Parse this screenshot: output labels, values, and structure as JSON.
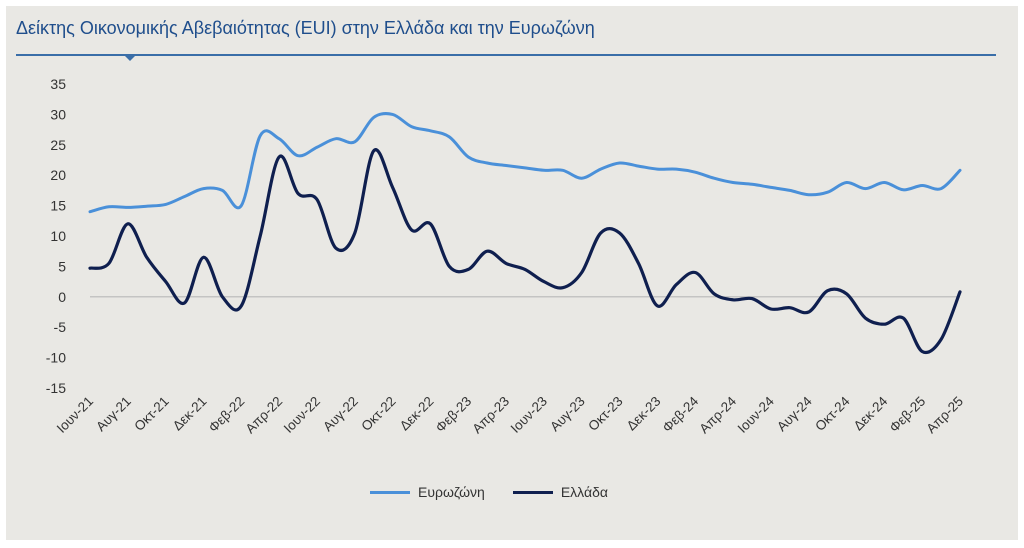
{
  "chart_data": {
    "type": "line",
    "title": "Δείκτης Οικονομικής Αβεβαιότητας (EUI) στην Ελλάδα και την Ευρωζώνη",
    "xlabel": "",
    "ylabel": "",
    "ylim": [
      -15,
      35
    ],
    "yticks": [
      35,
      30,
      25,
      20,
      15,
      10,
      5,
      0,
      -5,
      -10,
      -15
    ],
    "ytick_labels": [
      "35",
      "30",
      "25",
      "20",
      "15",
      "10",
      "5",
      "0",
      "-5",
      "-10",
      "-15"
    ],
    "xtick_labels": [
      "Ιουν-21",
      "Αυγ-21",
      "Οκτ-21",
      "Δεκ-21",
      "Φεβ-22",
      "Απρ-22",
      "Ιουν-22",
      "Αυγ-22",
      "Οκτ-22",
      "Δεκ-22",
      "Φεβ-23",
      "Απρ-23",
      "Ιουν-23",
      "Αυγ-23",
      "Οκτ-23",
      "Δεκ-23",
      "Φεβ-24",
      "Απρ-24",
      "Ιουν-24",
      "Αυγ-24",
      "Οκτ-24",
      "Δεκ-24",
      "Φεβ-25",
      "Απρ-25"
    ],
    "categories": [
      "Ιουν-21",
      "Ιουλ-21",
      "Αυγ-21",
      "Σεπ-21",
      "Οκτ-21",
      "Νοε-21",
      "Δεκ-21",
      "Ιαν-22",
      "Φεβ-22",
      "Μαρ-22",
      "Απρ-22",
      "Μαΐ-22",
      "Ιουν-22",
      "Ιουλ-22",
      "Αυγ-22",
      "Σεπ-22",
      "Οκτ-22",
      "Νοε-22",
      "Δεκ-22",
      "Ιαν-23",
      "Φεβ-23",
      "Μαρ-23",
      "Απρ-23",
      "Μαΐ-23",
      "Ιουν-23",
      "Ιουλ-23",
      "Αυγ-23",
      "Σεπ-23",
      "Οκτ-23",
      "Νοε-23",
      "Δεκ-23",
      "Ιαν-24",
      "Φεβ-24",
      "Μαρ-24",
      "Απρ-24",
      "Μαΐ-24",
      "Ιουν-24",
      "Ιουλ-24",
      "Αυγ-24",
      "Σεπ-24",
      "Οκτ-24",
      "Νοε-24",
      "Δεκ-24",
      "Ιαν-25",
      "Φεβ-25",
      "Μαρ-25",
      "Απρ-25"
    ],
    "series": [
      {
        "name": "Ευρωζώνη",
        "color": "#4a90d9",
        "values": [
          14,
          14.8,
          14.7,
          14.9,
          15.2,
          16.5,
          17.8,
          17.5,
          15,
          26.5,
          26,
          23.2,
          24.6,
          26,
          25.5,
          29.5,
          30,
          28,
          27.3,
          26.3,
          23,
          22,
          21.6,
          21.2,
          20.8,
          20.8,
          19.5,
          21,
          22,
          21.5,
          21,
          21,
          20.5,
          19.5,
          18.8,
          18.5,
          18,
          17.5,
          16.8,
          17.2,
          18.8,
          17.8,
          18.8,
          17.6,
          18.3,
          17.8,
          20.8
        ]
      },
      {
        "name": "Ελλάδα",
        "color": "#0f1f4f",
        "values": [
          4.7,
          5.5,
          12,
          6.5,
          2.5,
          -1,
          6.5,
          0,
          -1.5,
          10,
          23,
          17,
          16,
          8,
          10.5,
          24,
          18,
          11,
          12,
          5,
          4.5,
          7.5,
          5.5,
          4.5,
          2.5,
          1.5,
          4,
          10.5,
          10.5,
          5.5,
          -1.5,
          2,
          4,
          0.5,
          -0.5,
          -0.3,
          -2,
          -1.8,
          -2.5,
          1,
          0.5,
          -3.5,
          -4.5,
          -3.5,
          -9,
          -7,
          0.8
        ]
      }
    ]
  }
}
